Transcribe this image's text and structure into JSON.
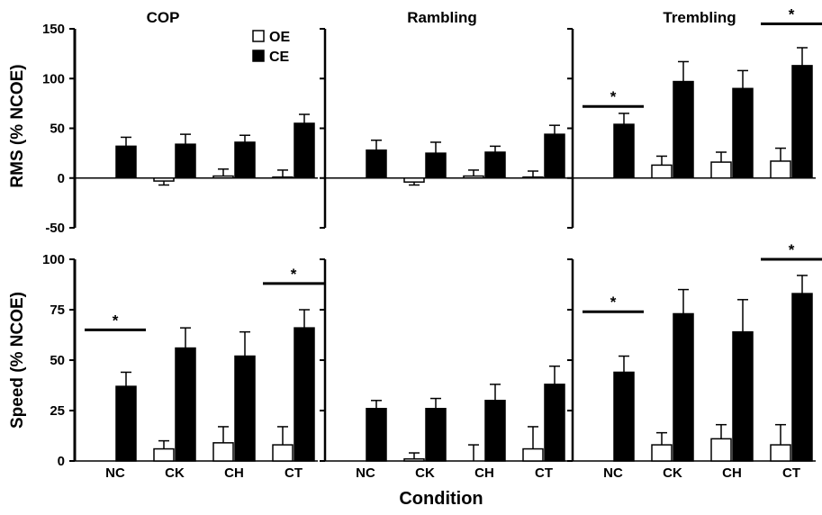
{
  "chart_data": {
    "type": "bar",
    "panel_titles": [
      "COP",
      "Rambling",
      "Trembling"
    ],
    "categories": [
      "NC",
      "CK",
      "CH",
      "CT"
    ],
    "xlabel": "Condition",
    "legend": [
      {
        "name": "OE",
        "fill": "#ffffff"
      },
      {
        "name": "CE",
        "fill": "#000000"
      }
    ],
    "rows": [
      {
        "ylabel": "RMS (% NCOE)",
        "ylim": [
          -50,
          150
        ],
        "yticks": [
          "150",
          "100",
          "50",
          "0",
          "-50"
        ],
        "panels": [
          {
            "title": "COP",
            "series": [
              {
                "name": "OE",
                "values": [
                  0,
                  -3,
                  2,
                  1
                ],
                "errors": [
                  0,
                  4,
                  7,
                  7
                ]
              },
              {
                "name": "CE",
                "values": [
                  32,
                  34,
                  36,
                  55
                ],
                "errors": [
                  9,
                  10,
                  7,
                  9
                ]
              }
            ],
            "significance": []
          },
          {
            "title": "Rambling",
            "series": [
              {
                "name": "OE",
                "values": [
                  0,
                  -4,
                  2,
                  1
                ],
                "errors": [
                  0,
                  3,
                  6,
                  6
                ]
              },
              {
                "name": "CE",
                "values": [
                  28,
                  25,
                  26,
                  44
                ],
                "errors": [
                  10,
                  11,
                  6,
                  9
                ]
              }
            ],
            "significance": []
          },
          {
            "title": "Trembling",
            "series": [
              {
                "name": "OE",
                "values": [
                  0,
                  13,
                  16,
                  17
                ],
                "errors": [
                  0,
                  9,
                  10,
                  13
                ]
              },
              {
                "name": "CE",
                "values": [
                  54,
                  97,
                  90,
                  113
                ],
                "errors": [
                  11,
                  20,
                  18,
                  18
                ]
              }
            ],
            "significance": [
              {
                "category": "NC",
                "y": 72
              },
              {
                "category": "CT",
                "y": 155
              }
            ]
          }
        ]
      },
      {
        "ylabel": "Speed (% NCOE)",
        "ylim": [
          0,
          100
        ],
        "yticks": [
          "100",
          "75",
          "50",
          "25",
          "0"
        ],
        "panels": [
          {
            "title": "COP",
            "series": [
              {
                "name": "OE",
                "values": [
                  0,
                  6,
                  9,
                  8
                ],
                "errors": [
                  0,
                  4,
                  8,
                  9
                ]
              },
              {
                "name": "CE",
                "values": [
                  37,
                  56,
                  52,
                  66
                ],
                "errors": [
                  7,
                  10,
                  12,
                  9
                ]
              }
            ],
            "significance": [
              {
                "category": "NC",
                "y": 65
              },
              {
                "category": "CT",
                "y": 88
              }
            ]
          },
          {
            "title": "Rambling",
            "series": [
              {
                "name": "OE",
                "values": [
                  0,
                  1,
                  0,
                  6
                ],
                "errors": [
                  0,
                  3,
                  8,
                  11
                ]
              },
              {
                "name": "CE",
                "values": [
                  26,
                  26,
                  30,
                  38
                ],
                "errors": [
                  4,
                  5,
                  8,
                  9
                ]
              }
            ],
            "significance": []
          },
          {
            "title": "Trembling",
            "series": [
              {
                "name": "OE",
                "values": [
                  0,
                  8,
                  11,
                  8
                ],
                "errors": [
                  0,
                  6,
                  7,
                  10
                ]
              },
              {
                "name": "CE",
                "values": [
                  44,
                  73,
                  64,
                  83
                ],
                "errors": [
                  8,
                  12,
                  16,
                  9
                ]
              }
            ],
            "significance": [
              {
                "category": "NC",
                "y": 74
              },
              {
                "category": "CT",
                "y": 100
              }
            ]
          }
        ]
      }
    ]
  }
}
